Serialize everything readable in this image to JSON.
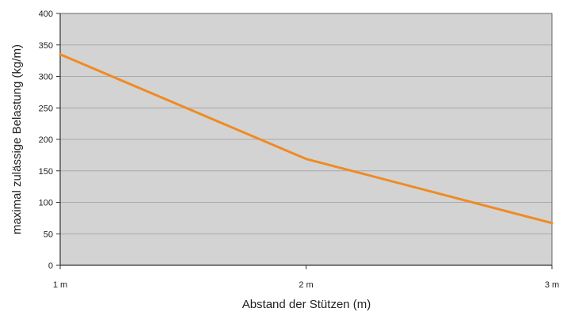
{
  "chart_data": {
    "type": "line",
    "xlabel": "Abstand der Stützen (m)",
    "ylabel": "maximal zulässige Belastung (kg/m)",
    "x": [
      1,
      2,
      3
    ],
    "x_tick_labels": [
      "1 m",
      "2 m",
      "3 m"
    ],
    "y_ticks": [
      0,
      50,
      100,
      150,
      200,
      250,
      300,
      350,
      400
    ],
    "ylim": [
      0,
      400
    ],
    "xlim": [
      1,
      3
    ],
    "series": [
      {
        "values": [
          335,
          169,
          67
        ]
      }
    ],
    "grid": "horizontal",
    "colors": {
      "line": "#f08a24",
      "plot_background": "#d3d3d3",
      "gridline": "#aaaaaa"
    }
  }
}
